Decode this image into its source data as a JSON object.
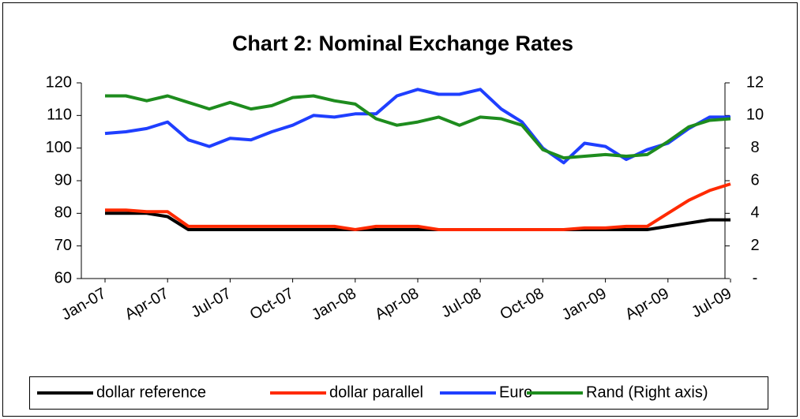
{
  "chart_data": {
    "type": "line",
    "title": "Chart 2: Nominal Exchange Rates",
    "categories": [
      "Jan-07",
      null,
      null,
      "Apr-07",
      null,
      null,
      "Jul-07",
      null,
      null,
      "Oct-07",
      null,
      null,
      "Jan-08",
      null,
      null,
      "Apr-08",
      null,
      null,
      "Jul-08",
      null,
      null,
      "Oct-08",
      null,
      null,
      "Jan-09",
      null,
      null,
      "Apr-09",
      null,
      null,
      "Jul-09"
    ],
    "series": [
      {
        "name": "dollar reference",
        "color": "#000000",
        "values": [
          80,
          80,
          80,
          79,
          75,
          75,
          75,
          75,
          75,
          75,
          75,
          75,
          75,
          75,
          75,
          75,
          75,
          75,
          75,
          75,
          75,
          75,
          75,
          75,
          75,
          75,
          75,
          76,
          77,
          78,
          78
        ]
      },
      {
        "name": "dollar parallel",
        "color": "#ff2a00",
        "values": [
          81,
          81,
          80.5,
          80.5,
          76,
          76,
          76,
          76,
          76,
          76,
          76,
          76,
          75,
          76,
          76,
          76,
          75,
          75,
          75,
          75,
          75,
          75,
          75,
          75.5,
          75.5,
          76,
          76,
          80,
          84,
          87,
          89
        ]
      },
      {
        "name": "Euro",
        "color": "#1f3fff",
        "values": [
          104.5,
          105,
          106,
          108,
          102.5,
          100.5,
          103,
          102.5,
          105,
          107,
          110,
          109.5,
          110.5,
          110.5,
          116,
          118,
          116.5,
          116.5,
          118,
          112,
          108,
          100,
          95.5,
          101.5,
          100.5,
          96.5,
          99.5,
          101.5,
          106,
          109.5,
          109.5
        ]
      },
      {
        "name": "Rand (Right axis)",
        "color": "#1e8c1e",
        "axis": "y2",
        "values": [
          11.2,
          11.2,
          10.9,
          11.2,
          10.8,
          10.4,
          10.8,
          10.4,
          10.6,
          11.1,
          11.2,
          10.9,
          10.7,
          9.8,
          9.4,
          9.6,
          9.9,
          9.4,
          9.9,
          9.8,
          9.4,
          7.9,
          7.4,
          7.5,
          7.6,
          7.5,
          7.6,
          8.4,
          9.3,
          9.7,
          9.8
        ]
      }
    ],
    "ylim": [
      60,
      120
    ],
    "yticks": [
      60,
      70,
      80,
      90,
      100,
      110,
      120
    ],
    "y2lim": [
      0,
      12
    ],
    "y2ticks": [
      {
        "value": 0,
        "label": "-"
      },
      2,
      4,
      6,
      8,
      10,
      12
    ],
    "grid": false,
    "legend": "bottom"
  }
}
